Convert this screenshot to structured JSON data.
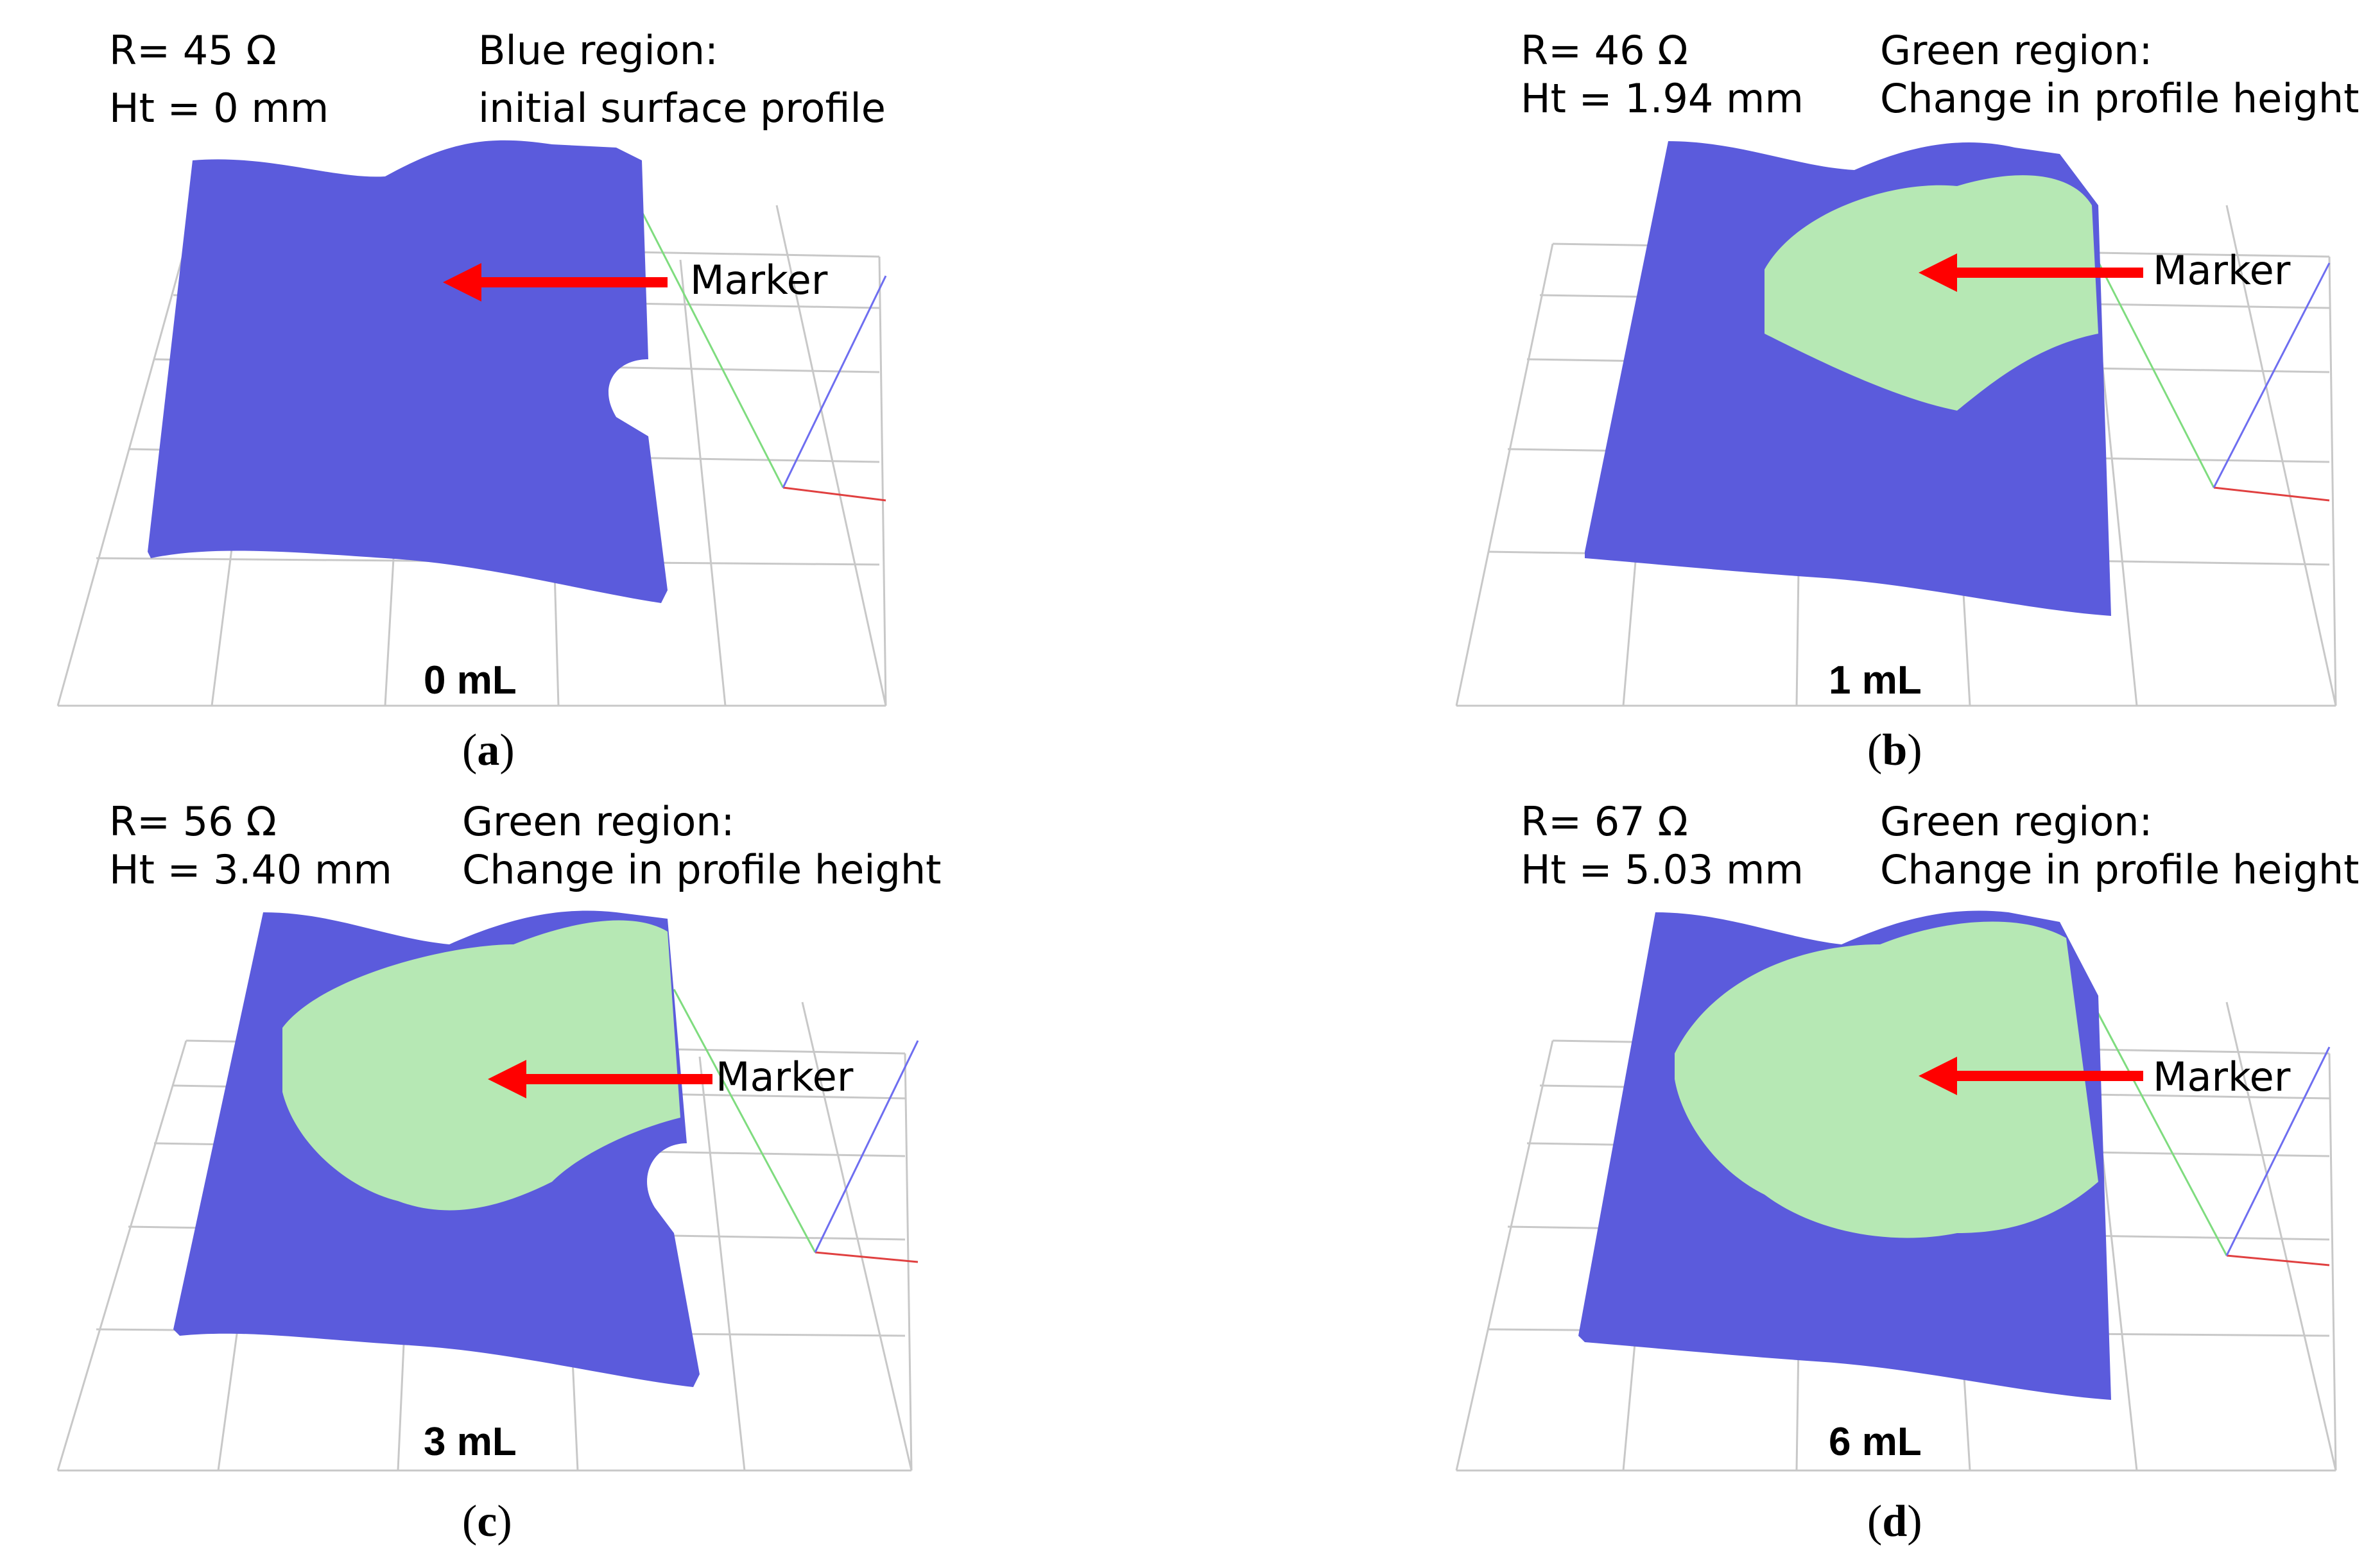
{
  "panels": [
    {
      "id": "a",
      "resistance": "R= 45 Ω",
      "height": "Ht = 0 mm",
      "region_title": "Blue region:",
      "region_desc": "initial surface profile",
      "marker": "Marker",
      "volume": "0 mL",
      "caption_letter": "a",
      "green_fraction": 0.0
    },
    {
      "id": "b",
      "resistance": "R= 46 Ω",
      "height": "Ht = 1.94 mm",
      "region_title": "Green region:",
      "region_desc": "Change in profile height",
      "marker": "Marker",
      "volume": "1 mL",
      "caption_letter": "b",
      "green_fraction": 0.35
    },
    {
      "id": "c",
      "resistance": "R= 56 Ω",
      "height": "Ht = 3.40 mm",
      "region_title": "Green region:",
      "region_desc": "Change in profile height",
      "marker": "Marker",
      "volume": "3 mL",
      "caption_letter": "c",
      "green_fraction": 0.5
    },
    {
      "id": "d",
      "resistance": "R= 67 Ω",
      "height": "Ht = 5.03 mm",
      "region_title": "Green region:",
      "region_desc": "Change in profile height",
      "marker": "Marker",
      "volume": "6 mL",
      "caption_letter": "d",
      "green_fraction": 0.65
    }
  ],
  "colors": {
    "surface_blue": "#5b5bdc",
    "change_green": "#b6e8b4",
    "arrow_red": "#ff0000",
    "grid_gray": "#c8c8c8",
    "axis_green": "#7fdc7f",
    "axis_blue": "#6e6ef0",
    "axis_red": "#e04040"
  }
}
